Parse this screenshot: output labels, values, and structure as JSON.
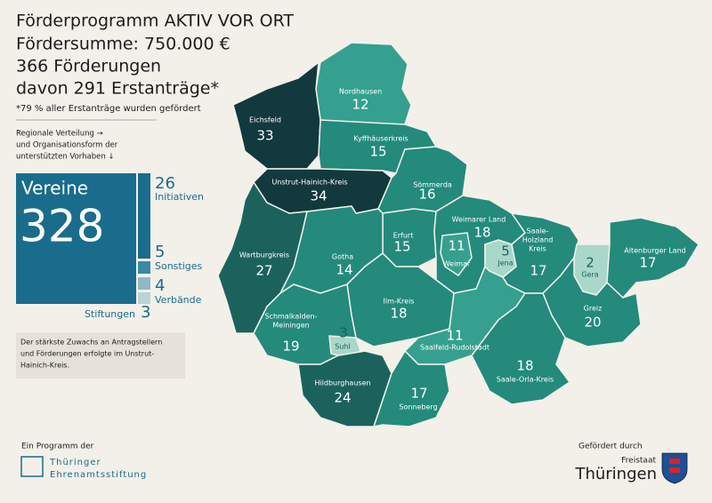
{
  "header": {
    "title": "Förderprogramm AKTIV VOR ORT",
    "lines": [
      "Fördersumme: 750.000 €",
      "366 Förderungen",
      "davon 291 Erstanträge*"
    ],
    "footnote": "*79 % aller Erstanträge wurden gefördert"
  },
  "intro": [
    "Regionale Verteilung →",
    "und Organisationsform der",
    "unterstützten Vorhaben ↓"
  ],
  "organisations": [
    {
      "name": "Vereine",
      "value": 328
    },
    {
      "name": "Initiativen",
      "value": 26
    },
    {
      "name": "Sonstiges",
      "value": 5
    },
    {
      "name": "Verbände",
      "value": 4
    },
    {
      "name": "Stiftungen",
      "value": 3
    }
  ],
  "note": [
    "Der stärkste Zuwachs an Antragstellern",
    "und Förderungen erfolgte im Unstrut-",
    "Hainich-Kreis."
  ],
  "regions": [
    {
      "name": [
        "Nordhausen"
      ],
      "value": 12
    },
    {
      "name": [
        "Eichsfeld"
      ],
      "value": 33
    },
    {
      "name": [
        "Kyffhäuserkreis"
      ],
      "value": 15
    },
    {
      "name": [
        "Unstrut-Hainich-Kreis"
      ],
      "value": 34
    },
    {
      "name": [
        "Sömmerda"
      ],
      "value": 16
    },
    {
      "name": [
        "Erfurt"
      ],
      "value": 15
    },
    {
      "name": [
        "Weimarer Land"
      ],
      "value": 18
    },
    {
      "name": [
        "Weimar"
      ],
      "value": 11
    },
    {
      "name": [
        "Jena"
      ],
      "value": 5
    },
    {
      "name": [
        "Saale-",
        "Holzland",
        "Kreis"
      ],
      "value": 17
    },
    {
      "name": [
        "Gera"
      ],
      "value": 2
    },
    {
      "name": [
        "Altenburger Land"
      ],
      "value": 17
    },
    {
      "name": [
        "Wartburgkreis"
      ],
      "value": 27
    },
    {
      "name": [
        "Gotha"
      ],
      "value": 14
    },
    {
      "name": [
        "Ilm-Kreis"
      ],
      "value": 18
    },
    {
      "name": [
        "Greiz"
      ],
      "value": 20
    },
    {
      "name": [
        "Schmalkalden-",
        "Meiningen"
      ],
      "value": 19
    },
    {
      "name": [
        "Suhl"
      ],
      "value": 3
    },
    {
      "name": [
        "Saalfeld-Rudolstadt"
      ],
      "value": 11
    },
    {
      "name": [
        "Saale-Orla-Kreis"
      ],
      "value": 18
    },
    {
      "name": [
        "Hildburghausen"
      ],
      "value": 24
    },
    {
      "name": [
        "Sonneberg"
      ],
      "value": 17
    }
  ],
  "footer": {
    "left_caption": "Ein Programm der",
    "left_logo": [
      "Thüringer",
      "Ehrenamtsstiftung"
    ],
    "right_caption": "Gefördert durch",
    "right_logo": [
      "Freistaat",
      "Thüringen"
    ]
  }
}
